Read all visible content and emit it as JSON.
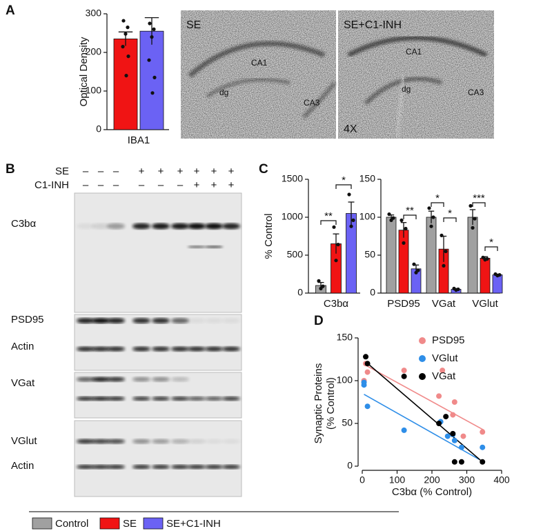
{
  "panel_labels": [
    "A",
    "B",
    "C",
    "D"
  ],
  "micrographs": [
    {
      "title": "SE",
      "labels": [
        "CA1",
        "dg",
        "CA3"
      ]
    },
    {
      "title": "SE+C1-INH",
      "labels": [
        "CA1",
        "dg",
        "CA3"
      ],
      "magnification": "4X"
    }
  ],
  "blot": {
    "rows": [
      {
        "label": "SE",
        "signs": [
          "–",
          "–",
          "–",
          "+",
          "+",
          "+",
          "+",
          "+",
          "+"
        ]
      },
      {
        "label": "C1-INH",
        "signs": [
          "–",
          "–",
          "–",
          "–",
          "–",
          "–",
          "+",
          "+",
          "+"
        ]
      }
    ],
    "bands": [
      "C3bα",
      "PSD95",
      "Actin",
      "VGat",
      "VGlut",
      "Actin"
    ]
  },
  "legend": [
    {
      "name": "Control",
      "color": "#a0a0a0"
    },
    {
      "name": "SE",
      "color": "#f01414"
    },
    {
      "name": "SE+C1-INH",
      "color": "#6b62f4"
    }
  ],
  "chart_data": [
    {
      "type": "bar",
      "ylabel": "Optical Density",
      "categories": [
        "IBA1"
      ],
      "ylim": [
        0,
        300
      ],
      "yticks": [
        0,
        100,
        200,
        300
      ],
      "series": [
        {
          "color": "#f01414",
          "values": [
            235
          ],
          "errors": [
            18
          ],
          "points": [
            [
              282,
              265,
              248,
              215,
              190,
              140
            ]
          ]
        },
        {
          "color": "#6b62f4",
          "values": [
            255
          ],
          "errors": [
            35
          ],
          "points": [
            [
              275,
              260,
              240,
              180,
              135,
              95
            ]
          ]
        }
      ]
    },
    {
      "type": "bar",
      "ylabel": "% Control",
      "categories": [
        "C3bα"
      ],
      "ylim": [
        0,
        1500
      ],
      "yticks": [
        0,
        500,
        1000,
        1500
      ],
      "series": [
        {
          "color": "#a0a0a0",
          "values": [
            100
          ],
          "errors": [
            40
          ],
          "points": [
            [
              160,
              90,
              60
            ]
          ]
        },
        {
          "color": "#f01414",
          "values": [
            650
          ],
          "errors": [
            130
          ],
          "points": [
            [
              870,
              640,
              430
            ]
          ]
        },
        {
          "color": "#6b62f4",
          "values": [
            1050
          ],
          "errors": [
            150
          ],
          "points": [
            [
              1300,
              960,
              880
            ]
          ]
        }
      ],
      "significance": [
        "**",
        "*"
      ]
    },
    {
      "type": "bar",
      "categories": [
        "PSD95",
        "VGat",
        "VGlut"
      ],
      "ylim": [
        0,
        150
      ],
      "yticks": [
        0,
        50,
        100,
        150
      ],
      "series": [
        {
          "color": "#a0a0a0",
          "values": [
            100,
            100,
            100
          ],
          "errors": [
            3,
            8,
            10
          ],
          "points": [
            [
              104,
              99,
              96
            ],
            [
              112,
              100,
              88
            ],
            [
              115,
              98,
              86
            ]
          ]
        },
        {
          "color": "#f01414",
          "values": [
            83,
            58,
            46
          ],
          "errors": [
            10,
            17,
            2
          ],
          "points": [
            [
              96,
              85,
              66
            ],
            [
              76,
              55,
              36
            ],
            [
              47,
              45,
              44
            ]
          ]
        },
        {
          "color": "#6b62f4",
          "values": [
            32,
            5,
            24
          ],
          "errors": [
            5,
            1,
            1
          ],
          "points": [
            [
              38,
              30,
              27
            ],
            [
              6,
              5,
              4
            ],
            [
              25,
              24,
              23
            ]
          ]
        }
      ],
      "significance": [
        "**",
        "*",
        "*",
        "***",
        "*"
      ]
    },
    {
      "type": "scatter",
      "xlabel": "C3bα (% Control)",
      "ylabel": [
        "Synaptic Proteins",
        "(% Control)"
      ],
      "xlim": [
        0,
        400
      ],
      "xticks": [
        0,
        100,
        200,
        300,
        400
      ],
      "ylim": [
        0,
        150
      ],
      "yticks": [
        0,
        50,
        100,
        150
      ],
      "series": [
        {
          "name": "PSD95",
          "color": "#f08a8a",
          "x": [
            5,
            10,
            15,
            120,
            220,
            230,
            260,
            265,
            290,
            345
          ],
          "y": [
            100,
            120,
            110,
            112,
            82,
            112,
            60,
            75,
            35,
            40
          ],
          "fit": {
            "x": [
              10,
              350
            ],
            "y": [
              118,
              42
            ]
          }
        },
        {
          "name": "VGlut",
          "color": "#2e8ee8",
          "x": [
            5,
            5,
            15,
            120,
            225,
            245,
            260,
            265,
            285,
            345
          ],
          "y": [
            95,
            98,
            70,
            42,
            52,
            35,
            37,
            30,
            22,
            22
          ],
          "fit": {
            "x": [
              5,
              335
            ],
            "y": [
              84,
              8
            ]
          }
        },
        {
          "name": "VGat",
          "color": "#000000",
          "x": [
            10,
            15,
            120,
            220,
            240,
            260,
            265,
            285,
            345
          ],
          "y": [
            128,
            120,
            105,
            50,
            58,
            38,
            5,
            5,
            5
          ],
          "fit": {
            "x": [
              10,
              345
            ],
            "y": [
              122,
              5
            ]
          }
        }
      ]
    }
  ]
}
